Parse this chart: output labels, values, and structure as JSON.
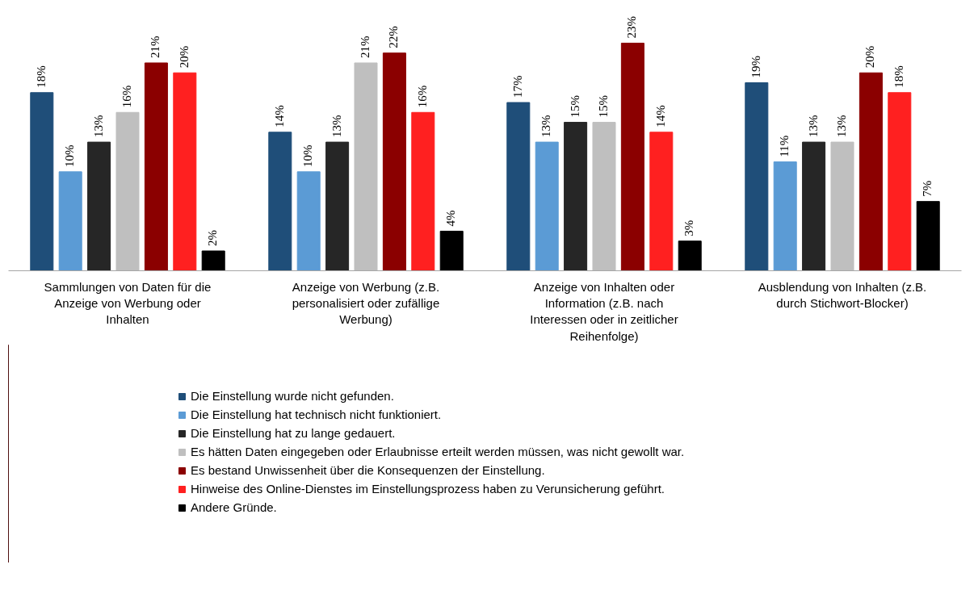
{
  "chart_data": {
    "type": "bar",
    "categories": [
      "Sammlungen von Daten für die Anzeige von Werbung oder Inhalten",
      "Anzeige von Werbung (z.B. personalisiert oder zufällige Werbung)",
      "Anzeige von Inhalten oder Information (z.B. nach Interessen oder in zeitlicher Reihenfolge)",
      "Ausblendung von Inhalten (z.B. durch Stichwort-Blocker)"
    ],
    "series": [
      {
        "name": "Die Einstellung wurde nicht gefunden.",
        "color": "#1f4e79",
        "values": [
          18,
          14,
          17,
          19
        ],
        "value_labels": [
          "18%",
          "14%",
          "17%",
          "19%"
        ]
      },
      {
        "name": "Die Einstellung hat technisch nicht funktioniert.",
        "color": "#5b9bd5",
        "values": [
          10,
          10,
          13,
          11
        ],
        "value_labels": [
          "10%",
          "10%",
          "13%",
          "11%"
        ]
      },
      {
        "name": "Die Einstellung hat zu lange gedauert.",
        "color": "#262626",
        "values": [
          13,
          13,
          15,
          13
        ],
        "value_labels": [
          "13%",
          "13%",
          "15%",
          "13%"
        ]
      },
      {
        "name": "Es hätten Daten eingegeben oder Erlaubnisse erteilt werden müssen, was nicht gewollt war.",
        "color": "#bfbfbf",
        "values": [
          16,
          21,
          15,
          13
        ],
        "value_labels": [
          "16%",
          "21%",
          "15%",
          "13%"
        ]
      },
      {
        "name": "Es bestand Unwissenheit über die Konsequenzen der Einstellung.",
        "color": "#8b0000",
        "values": [
          21,
          22,
          23,
          20
        ],
        "value_labels": [
          "21%",
          "22%",
          "23%",
          "20%"
        ]
      },
      {
        "name": "Hinweise des Online-Dienstes im Einstellungsprozess haben zu Verunsicherung geführt.",
        "color": "#ff2020",
        "values": [
          20,
          16,
          14,
          18
        ],
        "value_labels": [
          "20%",
          "16%",
          "14%",
          "18%"
        ]
      },
      {
        "name": "Andere Gründe.",
        "color": "#000000",
        "values": [
          2,
          4,
          3,
          7
        ],
        "value_labels": [
          "2%",
          "4%",
          "3%",
          "7%"
        ]
      }
    ],
    "legend": "bottom"
  }
}
